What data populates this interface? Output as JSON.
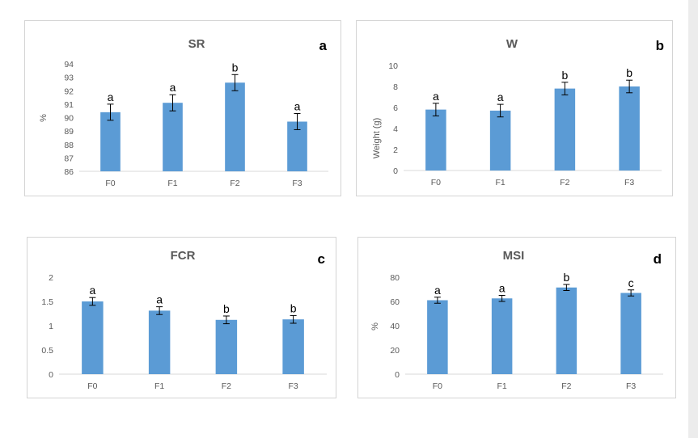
{
  "chart_data": [
    {
      "type": "bar",
      "title": "SR",
      "panel_letter": "a",
      "ylabel": "%",
      "xlabel": "",
      "categories": [
        "F0",
        "F1",
        "F2",
        "F3"
      ],
      "values": [
        90.4,
        91.1,
        92.6,
        89.7
      ],
      "errors": [
        0.6,
        0.6,
        0.6,
        0.6
      ],
      "significance": [
        "a",
        "a",
        "b",
        "a"
      ],
      "ylim": [
        86,
        94
      ],
      "yticks": [
        "86",
        "87",
        "88",
        "89",
        "90",
        "91",
        "92",
        "93",
        "94"
      ],
      "color": "#5b9bd5"
    },
    {
      "type": "bar",
      "title": "W",
      "panel_letter": "b",
      "ylabel": "Weight (g)",
      "xlabel": "",
      "categories": [
        "F0",
        "F1",
        "F2",
        "F3"
      ],
      "values": [
        5.8,
        5.7,
        7.8,
        8.0
      ],
      "errors": [
        0.6,
        0.6,
        0.6,
        0.6
      ],
      "significance": [
        "a",
        "a",
        "b",
        "b"
      ],
      "ylim": [
        0,
        10
      ],
      "yticks": [
        "0",
        "2",
        "4",
        "6",
        "8",
        "10"
      ],
      "color": "#5b9bd5"
    },
    {
      "type": "bar",
      "title": "FCR",
      "panel_letter": "c",
      "ylabel": "",
      "xlabel": "",
      "categories": [
        "F0",
        "F1",
        "F2",
        "F3"
      ],
      "values": [
        1.5,
        1.31,
        1.12,
        1.13
      ],
      "errors": [
        0.08,
        0.08,
        0.08,
        0.08
      ],
      "significance": [
        "a",
        "a",
        "b",
        "b"
      ],
      "ylim": [
        0,
        2
      ],
      "yticks": [
        "0",
        "0.5",
        "1",
        "1.5",
        "2"
      ],
      "color": "#5b9bd5"
    },
    {
      "type": "bar",
      "title": "MSI",
      "panel_letter": "d",
      "ylabel": "%",
      "xlabel": "",
      "categories": [
        "F0",
        "F1",
        "F2",
        "F3"
      ],
      "values": [
        61,
        62.5,
        71.5,
        67
      ],
      "errors": [
        2.5,
        2.5,
        2.5,
        2.5
      ],
      "significance": [
        "a",
        "a",
        "b",
        "c"
      ],
      "ylim": [
        0,
        80
      ],
      "yticks": [
        "0",
        "20",
        "40",
        "60",
        "80"
      ],
      "color": "#5b9bd5"
    }
  ]
}
